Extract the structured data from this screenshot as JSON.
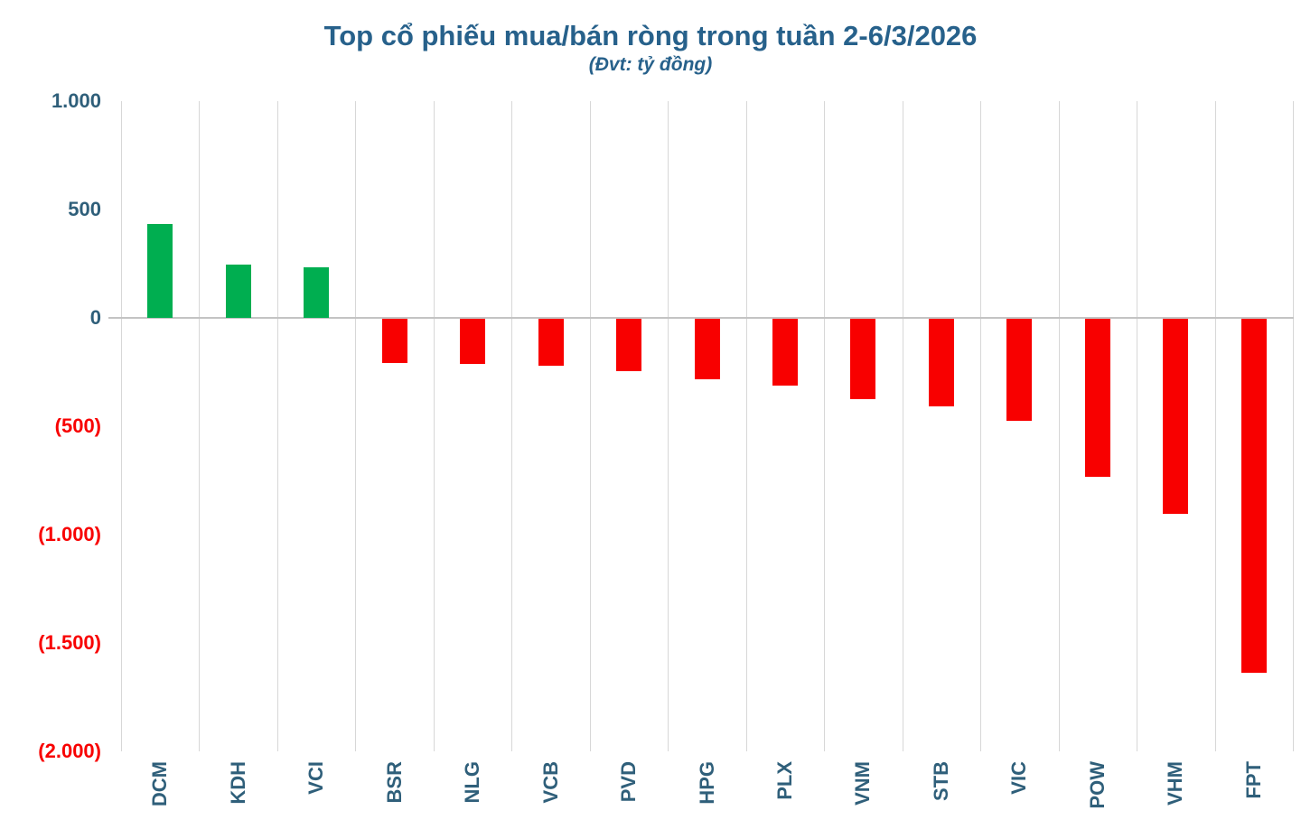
{
  "chart": {
    "title": "Top cổ phiếu mua/bán ròng trong tuần 2-6/3/2026",
    "subtitle": "(Đvt: tỷ đồng)"
  },
  "chart_data": {
    "type": "bar",
    "title": "Top cổ phiếu mua/bán ròng trong tuần 2-6/3/2026",
    "subtitle": "(Đvt: tỷ đồng)",
    "unit": "tỷ đồng",
    "categories": [
      "DCM",
      "KDH",
      "VCI",
      "BSR",
      "NLG",
      "VCB",
      "PVD",
      "HPG",
      "PLX",
      "VNM",
      "STB",
      "VIC",
      "POW",
      "VHM",
      "FPT"
    ],
    "values": [
      435,
      245,
      235,
      -205,
      -210,
      -215,
      -240,
      -280,
      -310,
      -370,
      -405,
      -470,
      -730,
      -900,
      -1635
    ],
    "xlabel": "",
    "ylabel": "",
    "ylim": [
      -2000,
      1000
    ],
    "yticks": [
      {
        "label": "1.000",
        "value": 1000
      },
      {
        "label": "500",
        "value": 500
      },
      {
        "label": "0",
        "value": 0
      },
      {
        "label": "(500)",
        "value": -500
      },
      {
        "label": "(1.000)",
        "value": -1000
      },
      {
        "label": "(1.500)",
        "value": -1500
      },
      {
        "label": "(2.000)",
        "value": -2000
      }
    ],
    "grid": "vertical-only",
    "legend": "none",
    "colors": {
      "positive_bar": "#00AE50",
      "negative_bar": "#F80000",
      "title_text": "#27618B",
      "tick_text": "#2F5F7A",
      "negative_tick_text": "#F80000",
      "gridline": "#D7D7D7",
      "zero_line": "#C3C3C3",
      "background": "#FFFFFF"
    }
  }
}
